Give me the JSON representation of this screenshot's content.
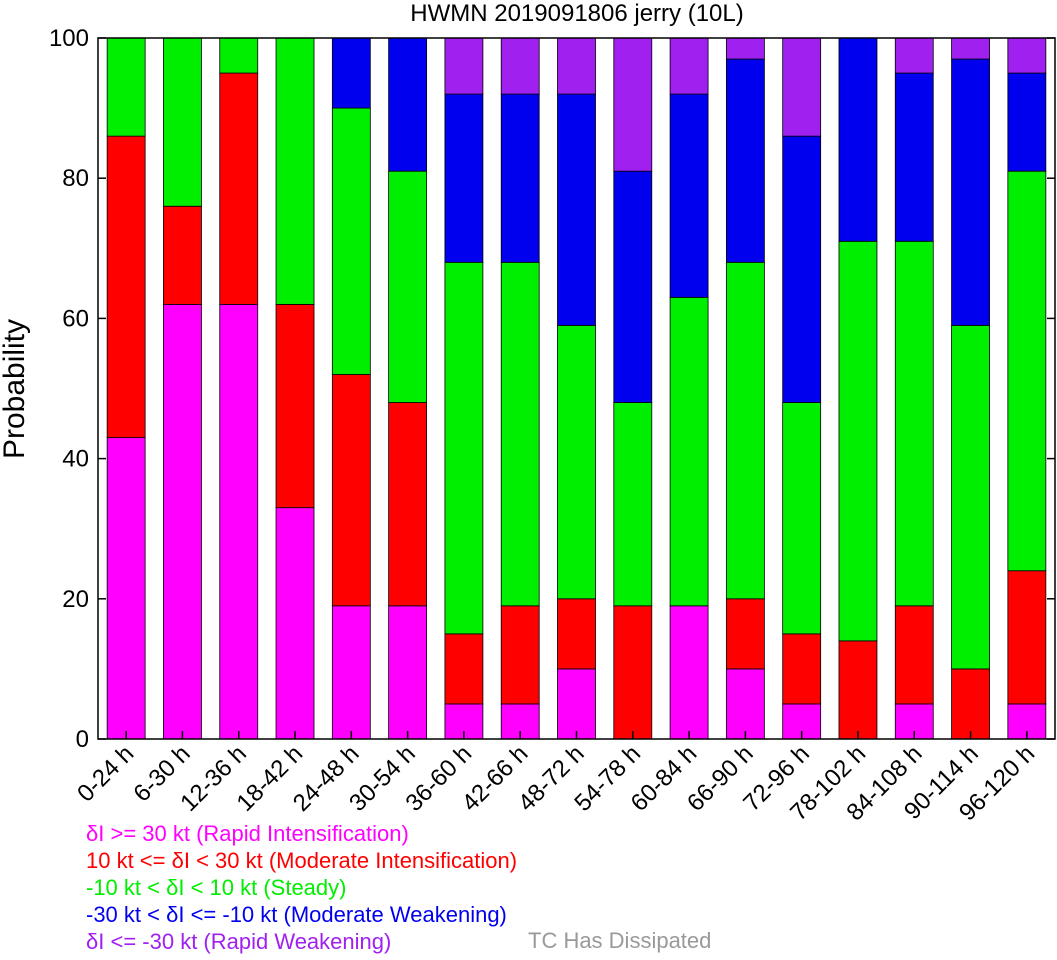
{
  "chart_data": {
    "type": "bar",
    "stacked": true,
    "title": "HWMN 2019091806 jerry (10L)",
    "ylabel": "Probability",
    "xlabel": "",
    "ylim": [
      0,
      100
    ],
    "yticks": [
      "0",
      "20",
      "40",
      "60",
      "80",
      "100"
    ],
    "categories": [
      "0-24 h",
      "6-30 h",
      "12-36 h",
      "18-42 h",
      "24-48 h",
      "30-54 h",
      "36-60 h",
      "42-66 h",
      "48-72 h",
      "54-78 h",
      "60-84 h",
      "66-90 h",
      "72-96 h",
      "78-102 h",
      "84-108 h",
      "90-114 h",
      "96-120 h"
    ],
    "series": [
      {
        "key": "ri",
        "color": "#ff00ff",
        "values": [
          43,
          62,
          62,
          33,
          19,
          19,
          5,
          5,
          10,
          0,
          19,
          10,
          5,
          0,
          5,
          0,
          5
        ]
      },
      {
        "key": "mi",
        "color": "#ff0000",
        "values": [
          43,
          14,
          33,
          29,
          33,
          29,
          10,
          14,
          10,
          19,
          0,
          10,
          10,
          14,
          14,
          10,
          19
        ]
      },
      {
        "key": "st",
        "color": "#00ee00",
        "values": [
          14,
          24,
          5,
          38,
          38,
          33,
          53,
          49,
          39,
          29,
          44,
          48,
          33,
          57,
          52,
          49,
          57
        ]
      },
      {
        "key": "mw",
        "color": "#0000ee",
        "values": [
          0,
          0,
          0,
          0,
          10,
          19,
          24,
          24,
          33,
          33,
          29,
          29,
          38,
          29,
          24,
          38,
          14
        ]
      },
      {
        "key": "rw",
        "color": "#a020f0",
        "values": [
          0,
          0,
          0,
          0,
          0,
          0,
          8,
          8,
          8,
          19,
          8,
          3,
          14,
          0,
          5,
          3,
          5
        ]
      }
    ],
    "grid": false,
    "legend_position": "bottom-left"
  },
  "legend": [
    {
      "text": "δI >= 30 kt (Rapid Intensification)",
      "color": "#ff00ff"
    },
    {
      "text": "10 kt <= δI < 30 kt (Moderate Intensification)",
      "color": "#ff0000"
    },
    {
      "text": "-10 kt < δI < 10 kt (Steady)",
      "color": "#00ee00"
    },
    {
      "text": "-30 kt < δI <= -10 kt (Moderate Weakening)",
      "color": "#0000ee"
    },
    {
      "text": "δI <= -30 kt (Rapid Weakening)",
      "color": "#a020f0"
    }
  ],
  "dissipated_label": "TC Has Dissipated",
  "dissipated_color": "#999999"
}
